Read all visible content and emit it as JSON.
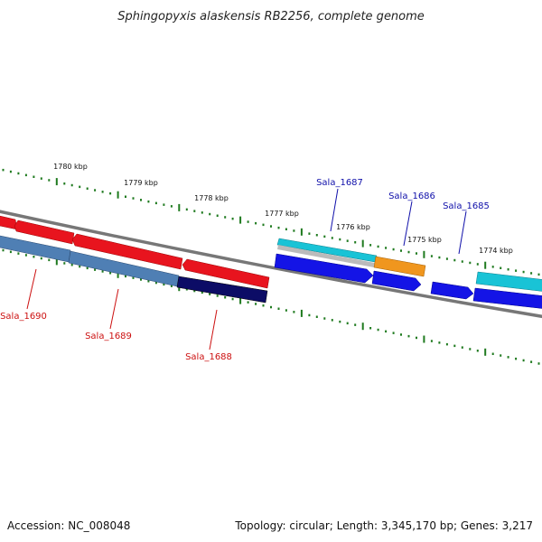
{
  "title": "Sphingopyxis alaskensis RB2256, complete genome",
  "footer": {
    "accession": "Accession: NC_008048",
    "stats": "Topology: circular; Length: 3,345,170 bp; Genes: 3,217"
  },
  "scale_labels": [
    "1780 kbp",
    "1779 kbp",
    "1778 kbp",
    "1777 kbp",
    "1776 kbp",
    "1775 kbp",
    "1774 kbp"
  ],
  "gene_labels": {
    "forward": [
      "Sala_1687",
      "Sala_1686",
      "Sala_1685"
    ],
    "reverse": [
      "Sala_1690",
      "Sala_1689",
      "Sala_1688"
    ]
  },
  "colors": {
    "tick": "#1f7a1f",
    "backbone": "#888888",
    "forward_label": "#1010aa",
    "reverse_label": "#cc1010",
    "red_gene": "#e8141e",
    "steel_gene": "#4f7fb4",
    "navy_gene": "#0c0c66",
    "blue_gene": "#1414e6",
    "cyan_gene": "#19c3d6",
    "orange_gene": "#f0961e"
  }
}
